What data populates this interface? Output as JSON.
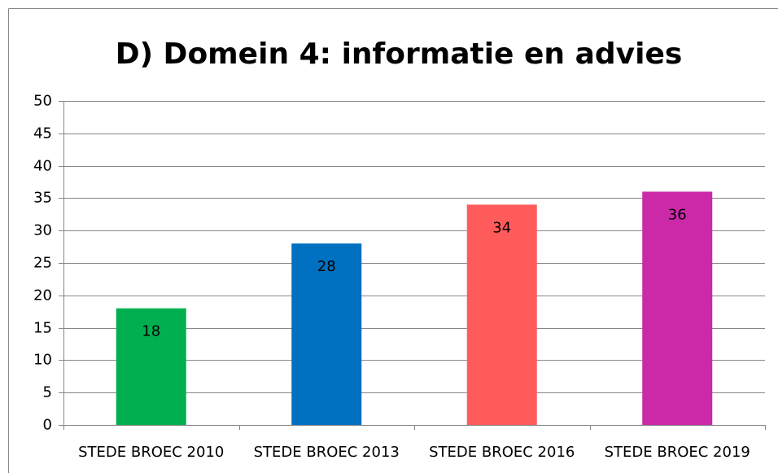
{
  "chart_data": {
    "type": "bar",
    "title": "D) Domein 4: informatie en advies",
    "categories": [
      "STEDE BROEC 2010",
      "STEDE BROEC 2013",
      "STEDE BROEC 2016",
      "STEDE BROEC 2019"
    ],
    "values": [
      18,
      28,
      34,
      36
    ],
    "colors": [
      "#00b050",
      "#0070c0",
      "#ff5b5b",
      "#cc29a8"
    ],
    "ylim": [
      0,
      50
    ],
    "yticks": [
      0,
      5,
      10,
      15,
      20,
      25,
      30,
      35,
      40,
      45,
      50
    ],
    "grid": true
  }
}
